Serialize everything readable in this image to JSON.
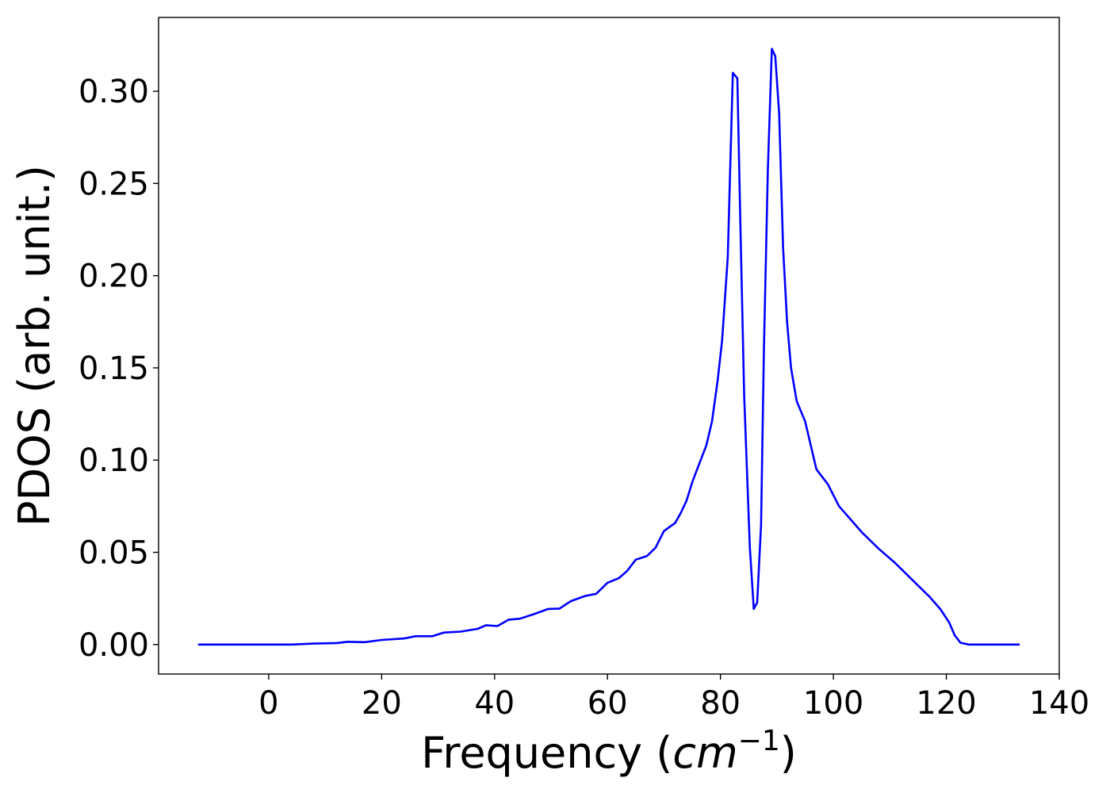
{
  "chart_data": {
    "type": "line",
    "title": "",
    "xlabel": "Frequency (cm⁻¹)",
    "xlabel_parts": {
      "prefix": "Frequency (",
      "unit": "cm",
      "exponent": "−1",
      "suffix": ")"
    },
    "ylabel": "PDOS (arb. unit.)",
    "xlim": [
      -19.5,
      140
    ],
    "ylim": [
      -0.016,
      0.34
    ],
    "xticks": [
      0,
      20,
      40,
      60,
      80,
      100,
      120,
      140
    ],
    "xtick_labels": [
      "0",
      "20",
      "40",
      "60",
      "80",
      "100",
      "120",
      "140"
    ],
    "yticks": [
      0.0,
      0.05,
      0.1,
      0.15,
      0.2,
      0.25,
      0.3
    ],
    "ytick_labels": [
      "0.00",
      "0.05",
      "0.10",
      "0.15",
      "0.20",
      "0.25",
      "0.30"
    ],
    "grid": false,
    "legend": "none",
    "series": [
      {
        "color": "#0000ff",
        "x": [
          -12.5,
          0,
          4,
          8,
          12,
          14,
          17,
          20,
          24,
          26,
          29,
          31,
          34,
          37,
          38.5,
          40.5,
          42.5,
          44.5,
          47,
          49.5,
          51.5,
          53.5,
          56,
          58,
          60,
          62,
          63.5,
          65,
          67,
          68.5,
          70,
          72,
          73,
          74,
          75,
          76.5,
          77.5,
          78.5,
          79.5,
          80.3,
          81.3,
          82.2,
          83,
          83.5,
          84.2,
          85.2,
          85.9,
          86.5,
          87.2,
          87.7,
          88.4,
          89.1,
          89.7,
          90.4,
          91.1,
          91.8,
          92.5,
          93.5,
          95,
          97,
          99,
          101,
          103,
          105,
          108,
          111,
          114,
          117,
          119,
          120.5,
          121.5,
          122.5,
          124,
          128,
          133
        ],
        "y": [
          0.0,
          0.0,
          0.0,
          0.0005,
          0.0008,
          0.0015,
          0.0013,
          0.0025,
          0.0033,
          0.0045,
          0.0045,
          0.0065,
          0.007,
          0.0085,
          0.0105,
          0.01,
          0.0135,
          0.014,
          0.0165,
          0.0193,
          0.0195,
          0.0235,
          0.0263,
          0.0275,
          0.0335,
          0.036,
          0.04,
          0.046,
          0.048,
          0.0525,
          0.0615,
          0.066,
          0.0715,
          0.078,
          0.088,
          0.1,
          0.108,
          0.121,
          0.143,
          0.165,
          0.21,
          0.31,
          0.307,
          0.232,
          0.135,
          0.053,
          0.0193,
          0.0228,
          0.065,
          0.16,
          0.258,
          0.323,
          0.319,
          0.288,
          0.215,
          0.175,
          0.15,
          0.132,
          0.121,
          0.095,
          0.087,
          0.075,
          0.068,
          0.061,
          0.052,
          0.044,
          0.035,
          0.026,
          0.019,
          0.012,
          0.005,
          0.001,
          0.0,
          0.0,
          0.0
        ]
      }
    ]
  }
}
